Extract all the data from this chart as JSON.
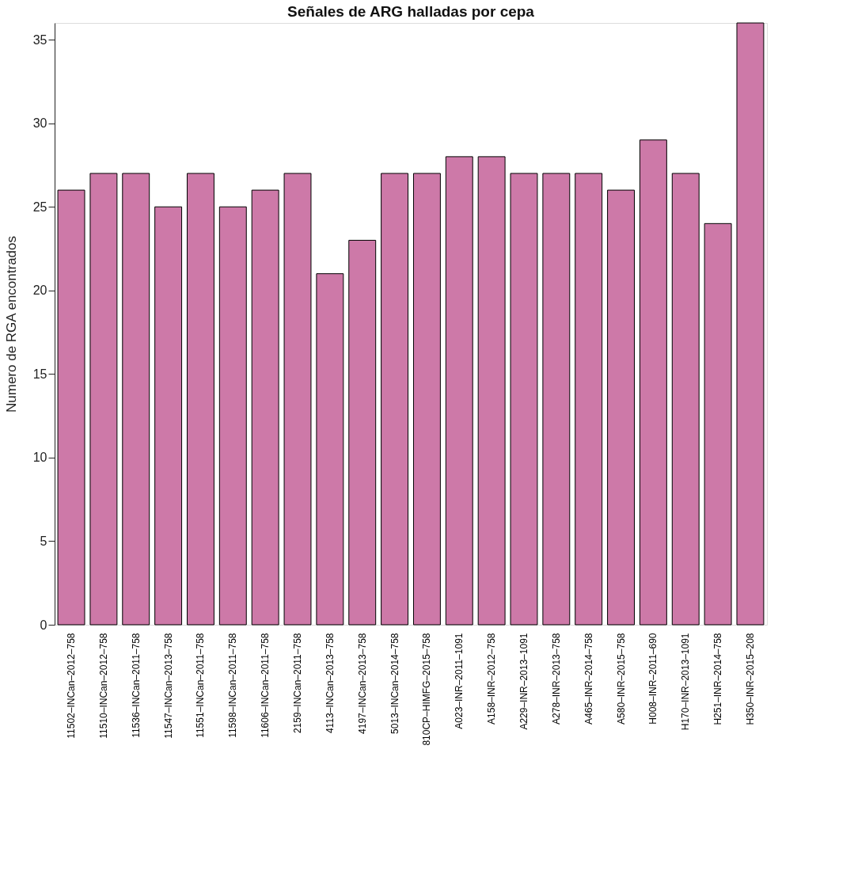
{
  "chart_data": {
    "type": "bar",
    "title": "Señales de ARG halladas por cepa",
    "ylabel": "Numero de RGA encontrados",
    "categories": [
      "11502–INCan–2012–758",
      "11510–INCan–2012–758",
      "11536–INCan–2011–758",
      "11547–INCan–2013–758",
      "11551–INCan–2011–758",
      "11598–INCan–2011–758",
      "11606–INCan–2011–758",
      "2159–INCan–2011–758",
      "4113–INCan–2013–758",
      "4197–INCan–2013–758",
      "5013–INCan–2014–758",
      "810CP–HIMFG–2015–758",
      "A023–INR–2011–1091",
      "A158–INR–2012–758",
      "A229–INR–2013–1091",
      "A278–INR–2013–758",
      "A465–INR–2014–758",
      "A580–INR–2015–758",
      "H008–INR–2011–690",
      "H170–INR–2013–1091",
      "H251–INR–2014–758",
      "H350–INR–2015–208"
    ],
    "values": [
      26,
      27,
      27,
      25,
      27,
      25,
      26,
      27,
      21,
      23,
      27,
      27,
      28,
      28,
      27,
      27,
      27,
      26,
      29,
      27,
      24,
      36
    ],
    "color": "#cd79a8",
    "ylim": [
      0,
      36
    ],
    "yticks": [
      0,
      5,
      10,
      15,
      20,
      25,
      30,
      35
    ],
    "grid": false
  }
}
